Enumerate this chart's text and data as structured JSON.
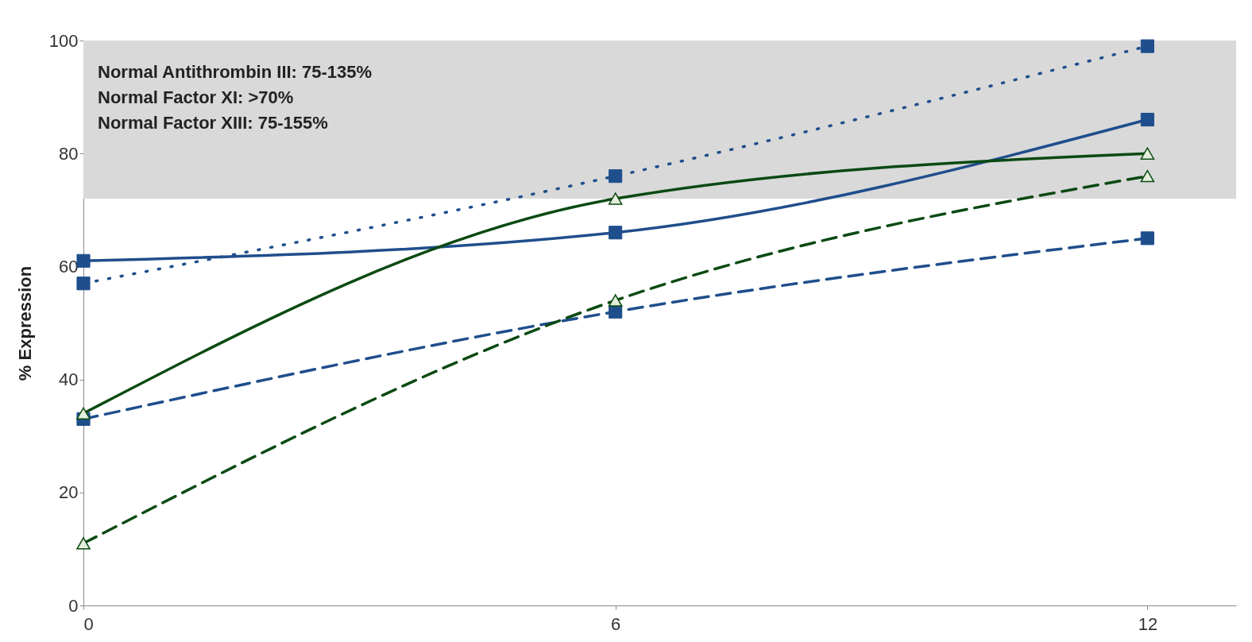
{
  "chart_data": {
    "type": "line",
    "ylabel": "% Expression",
    "x": [
      0,
      6,
      12
    ],
    "xlim": [
      0,
      13
    ],
    "xticks": [
      0,
      6,
      12
    ],
    "ylim": [
      0,
      100
    ],
    "yticks": [
      0,
      20,
      40,
      60,
      80,
      100
    ],
    "grid": false,
    "legend": false,
    "annotations": [
      "Normal Antithrombin III: 75-135%",
      "Normal Factor XI: >70%",
      "Normal Factor XIII: 75-155%"
    ],
    "bands": [
      {
        "axis": "y",
        "from": 72,
        "to": 100,
        "color": "#d9d9d9"
      }
    ],
    "series": [
      {
        "color": "#1f4e8c",
        "values": [
          57,
          76,
          99
        ],
        "line_style": "dotted",
        "marker": "square"
      },
      {
        "color": "#1f4e8c",
        "values": [
          61,
          66,
          86
        ],
        "line_style": "solid",
        "marker": "square"
      },
      {
        "color": "#1f4e8c",
        "values": [
          33,
          52,
          65
        ],
        "line_style": "dashed",
        "marker": "square"
      },
      {
        "color": "#0b4a12",
        "values": [
          34,
          72,
          80
        ],
        "line_style": "solid",
        "marker": "triangle"
      },
      {
        "color": "#0b4a12",
        "values": [
          11,
          54,
          76
        ],
        "line_style": "dashed",
        "marker": "triangle"
      }
    ]
  }
}
